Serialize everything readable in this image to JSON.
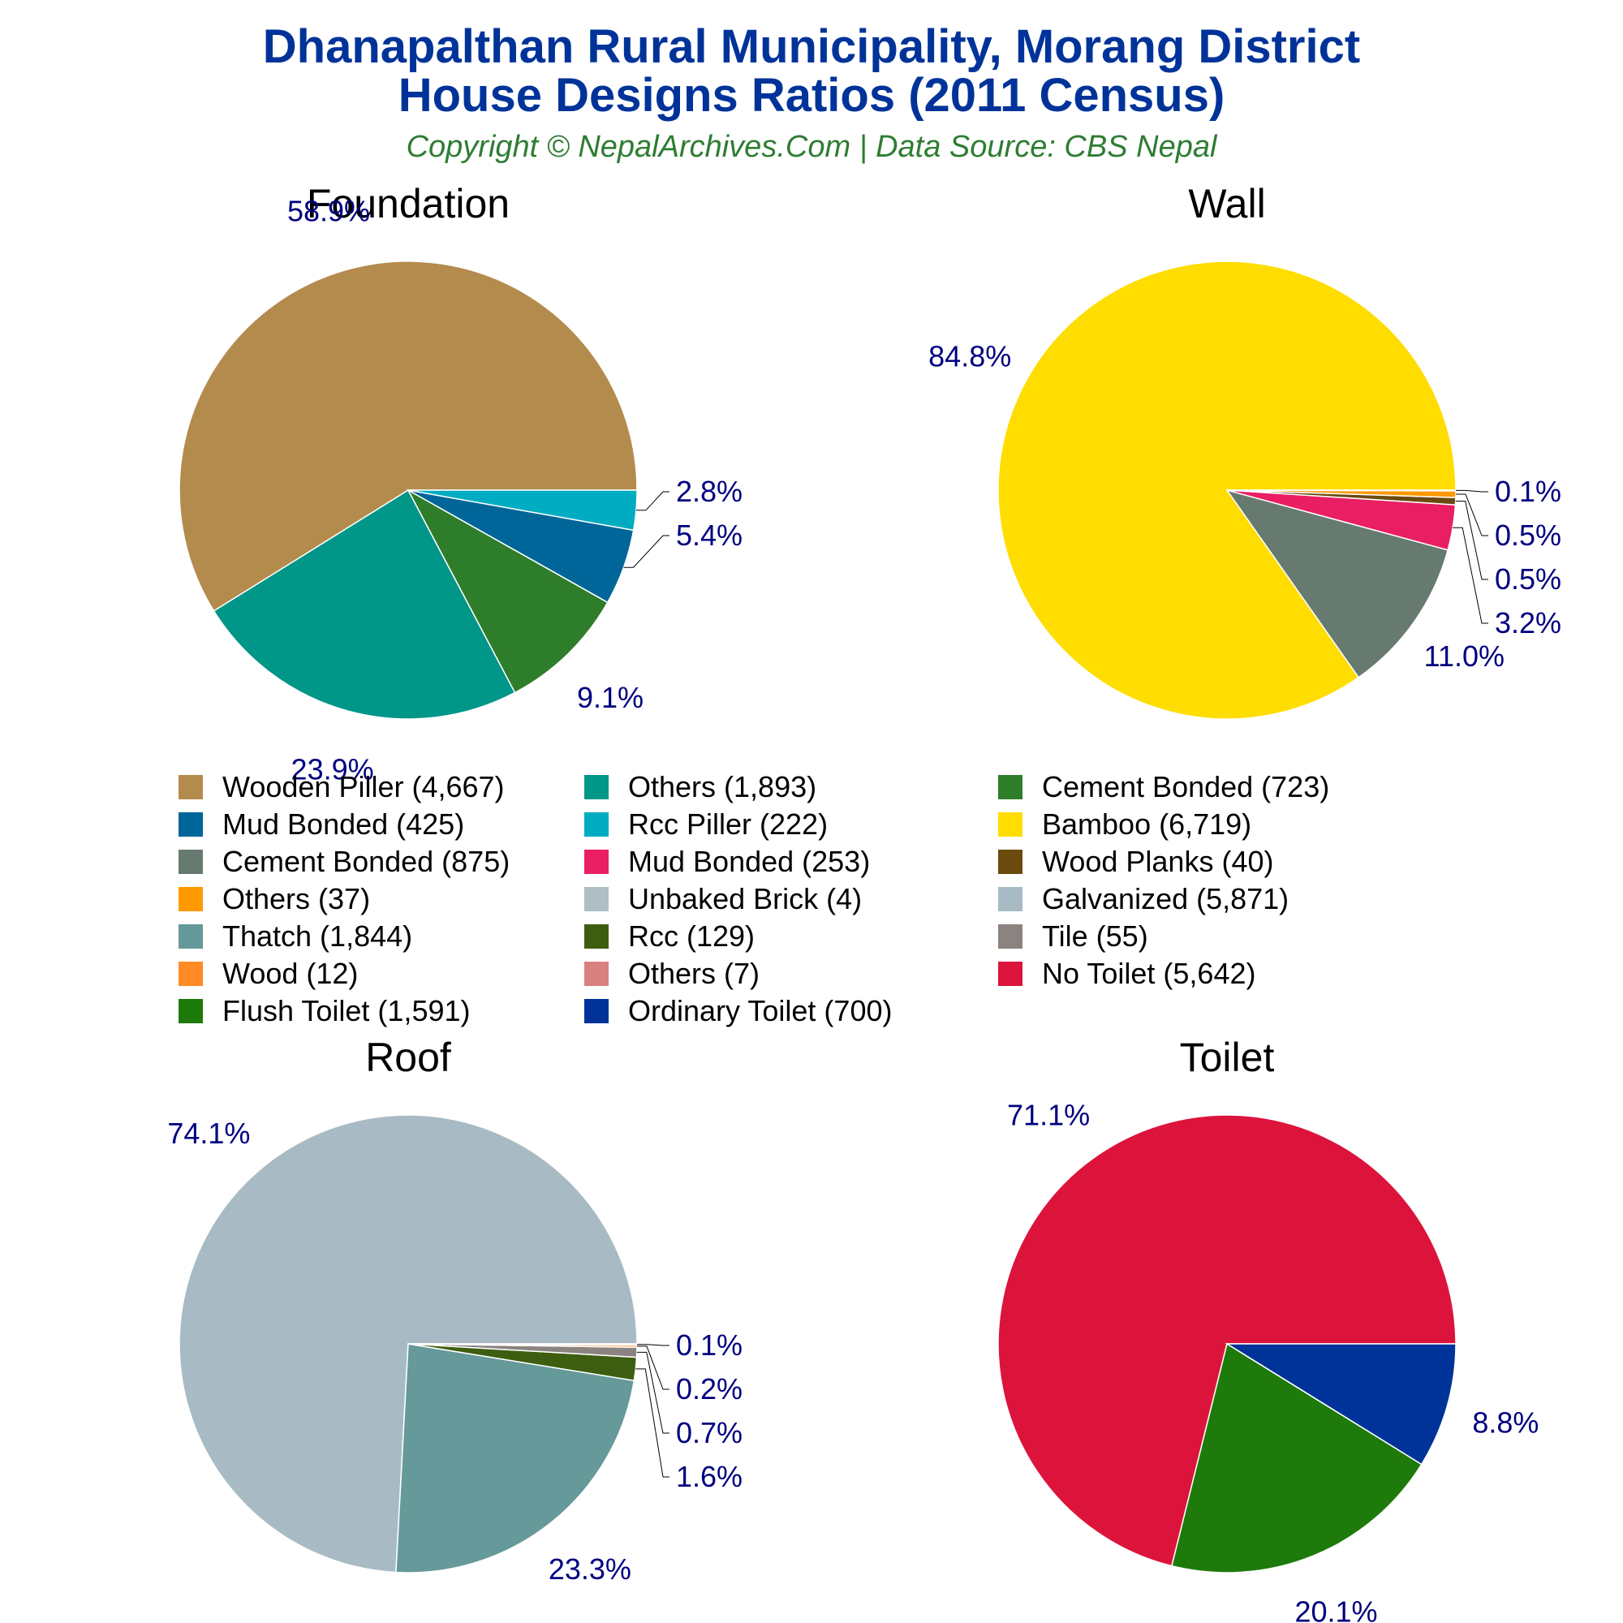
{
  "title_line1": "Dhanapalthan Rural Municipality, Morang District",
  "title_line2": "House Designs Ratios (2011 Census)",
  "subtitle": "Copyright © NepalArchives.Com | Data Source: CBS Nepal",
  "colors": {
    "title": "#003399",
    "subtitle": "#2e7d32",
    "percent_labels": "#000080"
  },
  "chart_data": [
    {
      "type": "pie",
      "title": "Foundation",
      "labels": [
        "Wooden Piller",
        "Others",
        "Cement Bonded",
        "Mud Bonded",
        "Rcc Piller"
      ],
      "values": [
        4667,
        1893,
        723,
        425,
        222
      ],
      "percent_labels": [
        "58.9%",
        "23.9%",
        "9.1%",
        "5.4%",
        "2.8%"
      ],
      "colors": [
        "#b38b4d",
        "#009688",
        "#2e7d2a",
        "#006699",
        "#00acc1"
      ]
    },
    {
      "type": "pie",
      "title": "Wall",
      "labels": [
        "Bamboo",
        "Cement Bonded",
        "Mud Bonded",
        "Wood Planks",
        "Others",
        "Unbaked Brick"
      ],
      "values": [
        6719,
        875,
        253,
        40,
        37,
        4
      ],
      "percent_labels": [
        "84.8%",
        "11.0%",
        "3.2%",
        "0.5%",
        "0.5%",
        "0.1%"
      ],
      "colors": [
        "#ffdd00",
        "#667a70",
        "#e91e63",
        "#6b4a0f",
        "#ff9900",
        "#b0bec5"
      ]
    },
    {
      "type": "pie",
      "title": "Roof",
      "labels": [
        "Galvanized",
        "Thatch",
        "Rcc",
        "Tile",
        "Wood",
        "Others"
      ],
      "values": [
        5871,
        1844,
        129,
        55,
        12,
        7
      ],
      "percent_labels": [
        "74.1%",
        "23.3%",
        "1.6%",
        "0.7%",
        "0.2%",
        "0.1%"
      ],
      "colors": [
        "#a8bbc4",
        "#669999",
        "#3d5e10",
        "#8a8380",
        "#ff8a26",
        "#d98080"
      ]
    },
    {
      "type": "pie",
      "title": "Toilet",
      "labels": [
        "No Toilet",
        "Flush Toilet",
        "Ordinary Toilet"
      ],
      "values": [
        5642,
        1591,
        700
      ],
      "percent_labels": [
        "71.1%",
        "20.1%",
        "8.8%"
      ],
      "colors": [
        "#dc143c",
        "#1e7a0a",
        "#003399"
      ]
    }
  ],
  "legend": [
    {
      "label": "Wooden Piller (4,667)",
      "color": "#b38b4d"
    },
    {
      "label": "Others (1,893)",
      "color": "#009688"
    },
    {
      "label": "Cement Bonded (723)",
      "color": "#2e7d2a"
    },
    {
      "label": "Mud Bonded (425)",
      "color": "#006699"
    },
    {
      "label": "Rcc Piller (222)",
      "color": "#00acc1"
    },
    {
      "label": "Bamboo (6,719)",
      "color": "#ffdd00"
    },
    {
      "label": "Cement Bonded (875)",
      "color": "#667a70"
    },
    {
      "label": "Mud Bonded (253)",
      "color": "#e91e63"
    },
    {
      "label": "Wood Planks (40)",
      "color": "#6b4a0f"
    },
    {
      "label": "Others (37)",
      "color": "#ff9900"
    },
    {
      "label": "Unbaked Brick (4)",
      "color": "#b0bec5"
    },
    {
      "label": "Galvanized (5,871)",
      "color": "#a8bbc4"
    },
    {
      "label": "Thatch (1,844)",
      "color": "#669999"
    },
    {
      "label": "Rcc (129)",
      "color": "#3d5e10"
    },
    {
      "label": "Tile (55)",
      "color": "#8a8380"
    },
    {
      "label": "Wood (12)",
      "color": "#ff8a26"
    },
    {
      "label": "Others (7)",
      "color": "#d98080"
    },
    {
      "label": "No Toilet (5,642)",
      "color": "#dc143c"
    },
    {
      "label": "Flush Toilet (1,591)",
      "color": "#1e7a0a"
    },
    {
      "label": "Ordinary Toilet (700)",
      "color": "#003399"
    }
  ]
}
